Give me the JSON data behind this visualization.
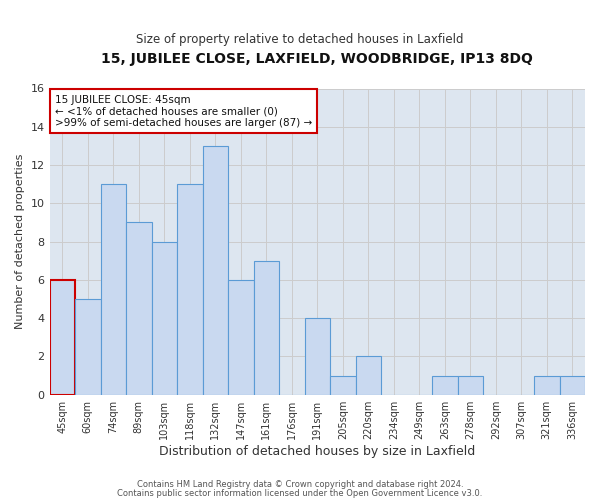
{
  "title1": "15, JUBILEE CLOSE, LAXFIELD, WOODBRIDGE, IP13 8DQ",
  "title2": "Size of property relative to detached houses in Laxfield",
  "xlabel": "Distribution of detached houses by size in Laxfield",
  "ylabel": "Number of detached properties",
  "footer1": "Contains HM Land Registry data © Crown copyright and database right 2024.",
  "footer2": "Contains public sector information licensed under the Open Government Licence v3.0.",
  "bin_labels": [
    "45sqm",
    "60sqm",
    "74sqm",
    "89sqm",
    "103sqm",
    "118sqm",
    "132sqm",
    "147sqm",
    "161sqm",
    "176sqm",
    "191sqm",
    "205sqm",
    "220sqm",
    "234sqm",
    "249sqm",
    "263sqm",
    "278sqm",
    "292sqm",
    "307sqm",
    "321sqm",
    "336sqm"
  ],
  "bar_values": [
    6,
    5,
    11,
    9,
    8,
    11,
    13,
    6,
    7,
    0,
    4,
    1,
    2,
    0,
    0,
    1,
    1,
    0,
    0,
    1,
    1
  ],
  "bar_color": "#c9d9f0",
  "bar_edge_color": "#5b9bd5",
  "highlight_bar_index": 0,
  "highlight_bar_edge_color": "#cc0000",
  "annotation_title": "15 JUBILEE CLOSE: 45sqm",
  "annotation_line1": "← <1% of detached houses are smaller (0)",
  "annotation_line2": ">99% of semi-detached houses are larger (87) →",
  "annotation_box_edge_color": "#cc0000",
  "ylim": [
    0,
    16
  ],
  "yticks": [
    0,
    2,
    4,
    6,
    8,
    10,
    12,
    14,
    16
  ],
  "grid_color": "#cccccc",
  "bg_color": "#dde6f0",
  "fig_bg_color": "#ffffff"
}
